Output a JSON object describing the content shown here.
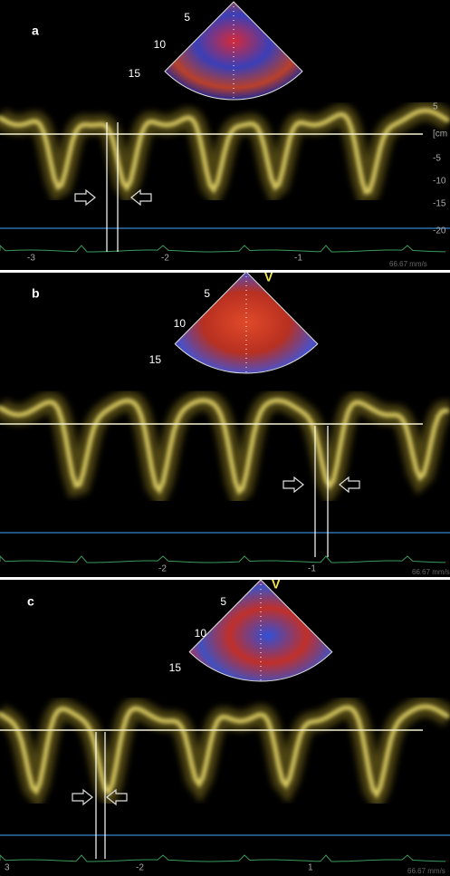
{
  "panels": [
    {
      "label": "a",
      "depth_marks": [
        "5",
        "10",
        "15"
      ],
      "time_labels": [
        "-3",
        "-2",
        "-1"
      ],
      "sweep_speed": "66.67 mm/s",
      "scale_marks": [
        "5",
        "[cm",
        "-5",
        "-10",
        "-15",
        "-20"
      ]
    },
    {
      "label": "b",
      "marker": "V",
      "depth_marks": [
        "5",
        "10",
        "15"
      ],
      "time_labels": [
        "-2",
        "-1"
      ],
      "sweep_speed": "66.67 mm/s"
    },
    {
      "label": "c",
      "marker": "V",
      "depth_marks": [
        "5",
        "10",
        "15"
      ],
      "time_labels": [
        "3",
        "-2",
        "1"
      ],
      "sweep_speed": "66.67 mm/s"
    }
  ]
}
